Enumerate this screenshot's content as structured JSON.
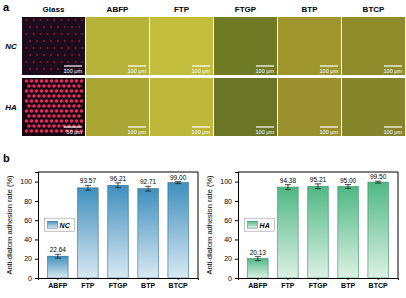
{
  "panels": [
    "a",
    "b"
  ],
  "image_grid": {
    "columns": [
      "Glass",
      "ABFP",
      "FTP",
      "FTGP",
      "BTP",
      "BTCP"
    ],
    "rows": [
      "NC",
      "HA"
    ],
    "scale_bars": [
      [
        "100 μm",
        "100 μm",
        "100 μm",
        "100 μm",
        "100 μm",
        "100 μm"
      ],
      [
        "50 μm",
        "100 μm",
        "100 μm",
        "100 μm",
        "100 μm",
        "100 μm"
      ]
    ]
  },
  "chart_data": [
    {
      "type": "bar",
      "y_label": "Anti-diatom adhesion rate (%)",
      "categories": [
        "ABFP",
        "FTP",
        "FTGP",
        "BTP",
        "BTCP"
      ],
      "series": [
        {
          "name": "NC",
          "color": "#3f8fbf",
          "values": [
            22.64,
            93.57,
            96.21,
            92.71,
            99.0
          ],
          "value_labels": [
            "22.64",
            "93.57",
            "96.21",
            "92.71",
            "99.00"
          ],
          "errors": [
            2.0,
            2.5,
            2.5,
            2.5,
            1.0
          ]
        }
      ],
      "ylim": [
        0,
        110
      ],
      "yticks": [
        0,
        20,
        40,
        60,
        80,
        100
      ],
      "data_labels": true,
      "legend": "upper left"
    },
    {
      "type": "bar",
      "y_label": "Anti-diatom adhesion rate (%)",
      "categories": [
        "ABFP",
        "FTP",
        "FTGP",
        "BTP",
        "BTCP"
      ],
      "series": [
        {
          "name": "HA",
          "color": "#4fb883",
          "values": [
            20.13,
            94.38,
            95.21,
            95.0,
            99.5
          ],
          "value_labels": [
            "20.13",
            "94.38",
            "95.21",
            "95.00",
            "99.50"
          ],
          "errors": [
            2.0,
            2.5,
            2.5,
            2.0,
            1.0
          ]
        }
      ],
      "ylim": [
        0,
        110
      ],
      "yticks": [
        0,
        20,
        40,
        60,
        80,
        100
      ],
      "data_labels": true,
      "legend": "upper left"
    }
  ]
}
